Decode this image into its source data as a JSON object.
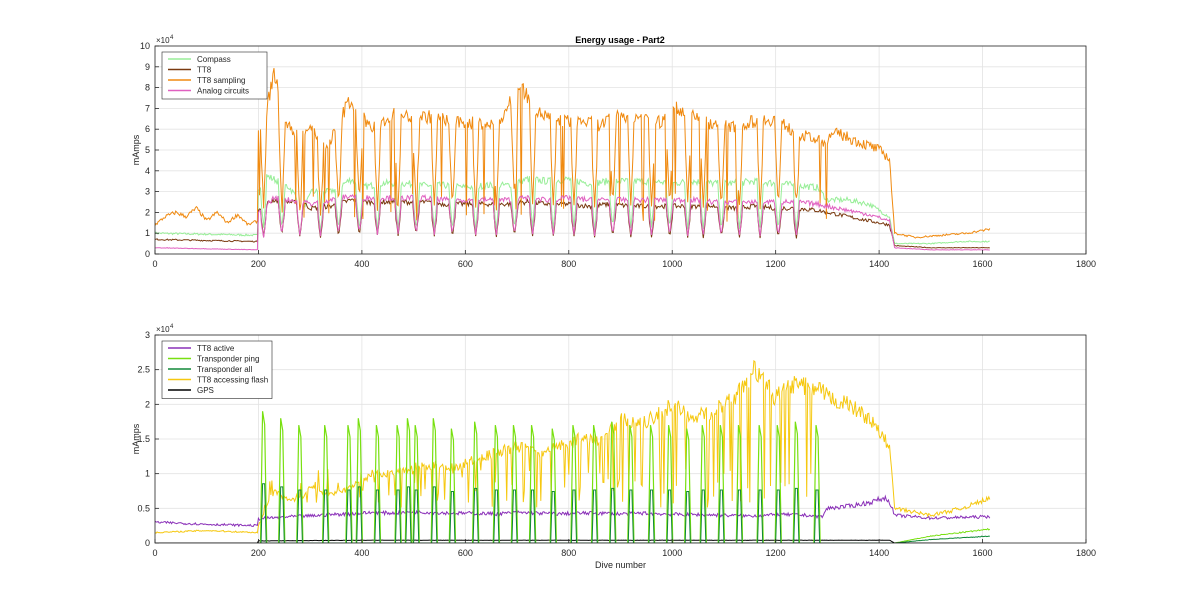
{
  "figure": {
    "title": "Energy usage - Part2"
  },
  "colors": {
    "compass": "#98ee98",
    "tt8": "#7a3a10",
    "tt8_sampling": "#f08a10",
    "analog_circuits": "#e060c0",
    "tt8_active": "#8a30b8",
    "transponder_ping": "#78e010",
    "transponder_all": "#108838",
    "tt8_accessing_flash": "#f6c810",
    "gps": "#000000"
  },
  "chart_data": [
    {
      "type": "line",
      "title": "Energy usage - Part2",
      "xlabel": "",
      "ylabel": "mAmps",
      "xlim": [
        0,
        1800
      ],
      "ylim": [
        0,
        100000
      ],
      "xticks": [
        0,
        200,
        400,
        600,
        800,
        1000,
        1200,
        1400,
        1600,
        1800
      ],
      "yticks": [
        0,
        10000,
        20000,
        30000,
        40000,
        50000,
        60000,
        70000,
        80000,
        90000,
        100000
      ],
      "ytick_labels": [
        "0",
        "1",
        "2",
        "3",
        "4",
        "5",
        "6",
        "7",
        "8",
        "9",
        "10"
      ],
      "y_exponent": "×10^4",
      "grid": true,
      "legend_position": "top-left",
      "series": [
        {
          "name": "Compass",
          "color_key": "compass",
          "x": [
            0,
            199,
            200,
            210,
            230,
            260,
            290,
            300,
            340,
            380,
            400,
            440,
            480,
            520,
            560,
            600,
            640,
            680,
            720,
            760,
            800,
            840,
            880,
            920,
            960,
            1000,
            1040,
            1080,
            1120,
            1160,
            1200,
            1240,
            1280,
            1300,
            1340,
            1380,
            1420,
            1430,
            1500,
            1560,
            1615
          ],
          "y": [
            10000,
            9000,
            30000,
            38000,
            36000,
            32000,
            22000,
            30000,
            30000,
            36000,
            32000,
            34000,
            34000,
            33000,
            33000,
            32000,
            33000,
            33000,
            36000,
            35000,
            36000,
            34000,
            35000,
            35000,
            35000,
            34000,
            35000,
            34000,
            34000,
            35000,
            34000,
            33000,
            32000,
            26000,
            26000,
            24000,
            18000,
            5000,
            5000,
            6000,
            6000
          ]
        },
        {
          "name": "TT8",
          "color_key": "tt8",
          "x": [
            0,
            199,
            200,
            230,
            260,
            290,
            300,
            340,
            380,
            400,
            440,
            480,
            520,
            560,
            600,
            640,
            680,
            720,
            760,
            800,
            840,
            880,
            920,
            960,
            1000,
            1040,
            1080,
            1120,
            1160,
            1200,
            1240,
            1280,
            1300,
            1340,
            1380,
            1420,
            1430,
            1500,
            1560,
            1615
          ],
          "y": [
            7000,
            6000,
            22000,
            26000,
            25000,
            24000,
            22000,
            23000,
            26000,
            25000,
            25000,
            25000,
            25000,
            24000,
            24000,
            24000,
            24000,
            25000,
            24000,
            24000,
            23000,
            24000,
            23000,
            23000,
            23000,
            23000,
            23000,
            22000,
            23000,
            22000,
            22000,
            21000,
            20000,
            18000,
            16000,
            14000,
            4000,
            3000,
            3000,
            3000
          ]
        },
        {
          "name": "TT8 sampling",
          "color_key": "tt8_sampling",
          "x": [
            0,
            20,
            40,
            60,
            80,
            100,
            120,
            140,
            160,
            180,
            199,
            200,
            215,
            230,
            250,
            280,
            300,
            330,
            350,
            375,
            390,
            420,
            460,
            500,
            540,
            580,
            620,
            660,
            700,
            710,
            740,
            780,
            820,
            860,
            900,
            940,
            980,
            1000,
            1030,
            1080,
            1120,
            1160,
            1200,
            1240,
            1290,
            1320,
            1360,
            1400,
            1420,
            1430,
            1470,
            1520,
            1570,
            1615
          ],
          "y": [
            14000,
            18000,
            20000,
            18000,
            22000,
            16000,
            20000,
            15000,
            19000,
            14000,
            16000,
            60000,
            68000,
            88000,
            62000,
            58000,
            62000,
            50000,
            60000,
            74000,
            70000,
            60000,
            67000,
            66000,
            66000,
            63000,
            63000,
            62000,
            78000,
            80000,
            68000,
            64000,
            64000,
            62000,
            67000,
            66000,
            63000,
            70000,
            69000,
            62000,
            61000,
            64000,
            65000,
            58000,
            54000,
            58000,
            54000,
            50000,
            46000,
            10000,
            8000,
            9000,
            10000,
            12000
          ]
        },
        {
          "name": "Analog circuits",
          "color_key": "analog_circuits",
          "x": [
            0,
            199,
            200,
            230,
            260,
            290,
            300,
            340,
            380,
            400,
            440,
            480,
            520,
            560,
            600,
            640,
            680,
            720,
            760,
            800,
            840,
            880,
            920,
            960,
            1000,
            1040,
            1080,
            1120,
            1160,
            1200,
            1240,
            1280,
            1300,
            1340,
            1380,
            1420,
            1430,
            1500,
            1560,
            1615
          ],
          "y": [
            3000,
            2000,
            20000,
            27000,
            26000,
            25000,
            24000,
            26000,
            28000,
            27000,
            27000,
            27000,
            27000,
            26000,
            26000,
            26000,
            26000,
            27000,
            26000,
            27000,
            26000,
            26000,
            26000,
            26000,
            26000,
            26000,
            25000,
            25000,
            25000,
            25000,
            25000,
            24000,
            23000,
            21000,
            19000,
            16000,
            3000,
            2000,
            2000,
            2000
          ]
        }
      ],
      "dips": [
        210,
        245,
        280,
        320,
        355,
        395,
        430,
        470,
        505,
        540,
        575,
        620,
        660,
        695,
        730,
        770,
        810,
        850,
        885,
        920,
        960,
        995,
        1030,
        1060,
        1095,
        1130,
        1170,
        1205,
        1240
      ]
    },
    {
      "type": "line",
      "title": "",
      "xlabel": "Dive number",
      "ylabel": "mAmps",
      "xlim": [
        0,
        1800
      ],
      "ylim": [
        0,
        30000
      ],
      "xticks": [
        0,
        200,
        400,
        600,
        800,
        1000,
        1200,
        1400,
        1600,
        1800
      ],
      "yticks": [
        0,
        5000,
        10000,
        15000,
        20000,
        25000,
        30000
      ],
      "ytick_labels": [
        "0",
        "0.5",
        "1",
        "1.5",
        "2",
        "2.5",
        "3"
      ],
      "y_exponent": "×10^4",
      "grid": true,
      "legend_position": "top-left",
      "series": [
        {
          "name": "TT8 active",
          "color_key": "tt8_active",
          "x": [
            0,
            100,
            199,
            200,
            260,
            300,
            340,
            380,
            420,
            460,
            500,
            540,
            580,
            620,
            660,
            700,
            740,
            780,
            820,
            860,
            900,
            940,
            980,
            1020,
            1060,
            1100,
            1140,
            1180,
            1220,
            1260,
            1290,
            1300,
            1340,
            1380,
            1410,
            1420,
            1430,
            1500,
            1560,
            1615
          ],
          "y": [
            3000,
            2700,
            2500,
            3500,
            3800,
            3900,
            4100,
            4200,
            4400,
            4300,
            4500,
            4400,
            4300,
            4300,
            4200,
            4400,
            4300,
            4200,
            4300,
            4300,
            4200,
            4300,
            4200,
            4100,
            4100,
            4000,
            3900,
            4000,
            4100,
            4000,
            3800,
            5000,
            5300,
            5800,
            6500,
            6000,
            4000,
            3600,
            3700,
            3800
          ]
        },
        {
          "name": "Transponder ping",
          "color_key": "transponder_ping",
          "x": [
            0,
            199,
            1430,
            1500,
            1615
          ],
          "y": [
            0,
            0,
            0,
            1000,
            2000
          ]
        },
        {
          "name": "Transponder all",
          "color_key": "transponder_all",
          "x": [
            0,
            199,
            1430,
            1500,
            1615
          ],
          "y": [
            0,
            0,
            0,
            500,
            1000
          ]
        },
        {
          "name": "TT8 accessing flash",
          "color_key": "tt8_accessing_flash",
          "x": [
            0,
            100,
            199,
            200,
            230,
            260,
            290,
            300,
            340,
            380,
            420,
            460,
            500,
            540,
            580,
            620,
            660,
            700,
            740,
            780,
            820,
            860,
            900,
            940,
            980,
            1000,
            1040,
            1080,
            1120,
            1160,
            1200,
            1240,
            1290,
            1300,
            1340,
            1380,
            1410,
            1420,
            1430,
            1500,
            1560,
            1615
          ],
          "y": [
            1500,
            1800,
            1500,
            2500,
            7500,
            6000,
            7000,
            8000,
            7000,
            8000,
            10000,
            10000,
            11000,
            11000,
            11000,
            12000,
            13000,
            14000,
            13000,
            14000,
            15000,
            15000,
            18000,
            17000,
            19000,
            20000,
            18000,
            19000,
            21000,
            25000,
            21000,
            23000,
            22000,
            21000,
            20000,
            18000,
            15000,
            14000,
            5000,
            4000,
            5000,
            6500
          ]
        },
        {
          "name": "GPS",
          "color_key": "gps",
          "x": [
            0,
            199,
            200,
            400,
            600,
            800,
            1000,
            1200,
            1420,
            1430,
            1615
          ],
          "y": [
            0,
            0,
            300,
            400,
            400,
            400,
            400,
            400,
            400,
            0,
            0
          ]
        }
      ],
      "ping_spikes": [
        [
          210,
          19000
        ],
        [
          245,
          18000
        ],
        [
          280,
          17000
        ],
        [
          330,
          17000
        ],
        [
          375,
          17000
        ],
        [
          395,
          18000
        ],
        [
          430,
          17000
        ],
        [
          470,
          17000
        ],
        [
          490,
          18000
        ],
        [
          505,
          17000
        ],
        [
          540,
          18000
        ],
        [
          575,
          16500
        ],
        [
          620,
          17500
        ],
        [
          660,
          17000
        ],
        [
          695,
          17000
        ],
        [
          730,
          17000
        ],
        [
          770,
          16500
        ],
        [
          810,
          17000
        ],
        [
          850,
          17000
        ],
        [
          885,
          17500
        ],
        [
          920,
          17000
        ],
        [
          960,
          17000
        ],
        [
          995,
          17000
        ],
        [
          1030,
          16500
        ],
        [
          1060,
          17000
        ],
        [
          1095,
          17000
        ],
        [
          1130,
          17000
        ],
        [
          1170,
          17000
        ],
        [
          1205,
          17000
        ],
        [
          1240,
          17500
        ],
        [
          1280,
          17000
        ]
      ]
    }
  ]
}
